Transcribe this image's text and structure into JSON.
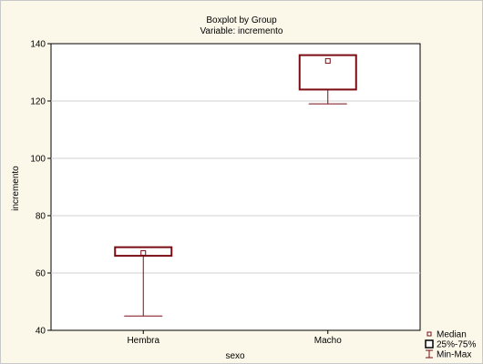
{
  "chart_data": {
    "type": "boxplot",
    "title": "Boxplot by Group",
    "subtitle": "Variable: incremento",
    "xlabel": "sexo",
    "ylabel": "incremento",
    "ylim": [
      40,
      140
    ],
    "yticks": [
      40,
      60,
      80,
      100,
      120,
      140
    ],
    "grid": true,
    "legend_position": "bottom-right",
    "legend": [
      "Median",
      "25%-75%",
      "Min-Max"
    ],
    "colors": {
      "box": "#7a0c14",
      "background": "#fbf8ea",
      "plot_area": "#ffffff"
    },
    "groups": [
      {
        "name": "Hembra",
        "min": 45,
        "q1": 66,
        "median": 67,
        "q3": 69,
        "max": 69
      },
      {
        "name": "Macho",
        "min": 119,
        "q1": 124,
        "median": 134,
        "q3": 136,
        "max": 136
      }
    ]
  }
}
